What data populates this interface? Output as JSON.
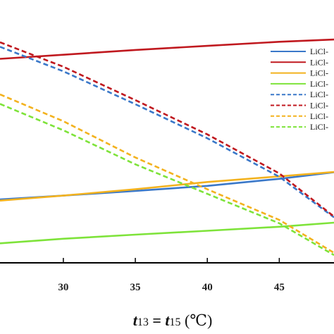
{
  "chart_data": {
    "type": "line",
    "xlabel": "t13 = t15 (℃)",
    "xlabel_parts": {
      "t1": "t",
      "s1": "13",
      "mid": " = ",
      "t2": "t",
      "s2": "15",
      "unit": " (℃)"
    },
    "xlim": [
      25.6,
      48.8
    ],
    "ylim": [
      0,
      1
    ],
    "x_ticks": [
      30,
      35,
      40,
      45
    ],
    "grid": false,
    "legend_position": "right",
    "series": [
      {
        "name": "LiCl-",
        "color": "#3a78c9",
        "style": "solid",
        "x": [
          25.6,
          30,
          35,
          40,
          45,
          48.8
        ],
        "y": [
          0.245,
          0.262,
          0.283,
          0.305,
          0.336,
          0.365
        ]
      },
      {
        "name": "LiCl-",
        "color": "#c0191f",
        "style": "solid",
        "x": [
          25.6,
          30,
          35,
          40,
          45,
          48.8
        ],
        "y": [
          0.865,
          0.883,
          0.904,
          0.922,
          0.94,
          0.95
        ]
      },
      {
        "name": "LiCl-",
        "color": "#f3b21e",
        "style": "solid",
        "x": [
          25.6,
          30,
          35,
          40,
          45,
          48.8
        ],
        "y": [
          0.24,
          0.262,
          0.29,
          0.322,
          0.347,
          0.366
        ]
      },
      {
        "name": "LiCl-",
        "color": "#7ee33a",
        "style": "solid",
        "x": [
          25.6,
          30,
          35,
          40,
          45,
          48.8
        ],
        "y": [
          0.052,
          0.072,
          0.09,
          0.107,
          0.125,
          0.143
        ]
      },
      {
        "name": "LiCl-",
        "color": "#3a78c9",
        "style": "dashed",
        "x": [
          25.6,
          30,
          35,
          40,
          45,
          48.8
        ],
        "y": [
          0.918,
          0.81,
          0.665,
          0.515,
          0.345,
          0.166
        ]
      },
      {
        "name": "LiCl-",
        "color": "#c0191f",
        "style": "dashed",
        "x": [
          25.6,
          30,
          35,
          40,
          45,
          48.8
        ],
        "y": [
          0.938,
          0.83,
          0.683,
          0.532,
          0.36,
          0.17
        ]
      },
      {
        "name": "LiCl-",
        "color": "#f3b21e",
        "style": "dashed",
        "x": [
          25.6,
          30,
          35,
          40,
          45,
          48.8
        ],
        "y": [
          0.708,
          0.59,
          0.43,
          0.29,
          0.155,
          0.01
        ]
      },
      {
        "name": "LiCl-",
        "color": "#7ee33a",
        "style": "dashed",
        "x": [
          25.6,
          30,
          35,
          40,
          45,
          48.8
        ],
        "y": [
          0.666,
          0.55,
          0.4,
          0.27,
          0.14,
          0.0
        ]
      }
    ]
  }
}
